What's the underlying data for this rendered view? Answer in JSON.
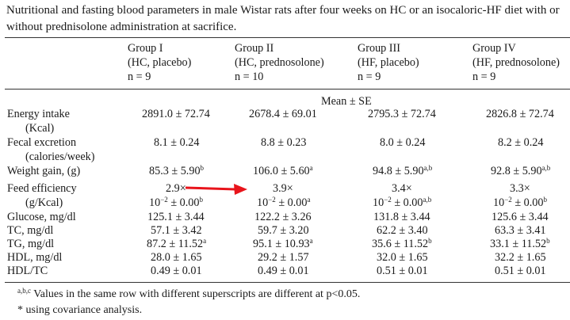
{
  "caption": "Nutritional and fasting blood parameters in male Wistar rats after four weeks on HC or an isocaloric-HF diet with or without prednisolone administration at sacrifice.",
  "groups": [
    {
      "name": "Group I",
      "diet": "(HC, placebo)",
      "n": "n = 9"
    },
    {
      "name": "Group II",
      "diet": "(HC, prednosolone)",
      "n": "n = 10"
    },
    {
      "name": "Group III",
      "diet": "(HF, placebo)",
      "n": "n = 9"
    },
    {
      "name": "Group IV",
      "diet": "(HF, prednosolone)",
      "n": "n = 9"
    }
  ],
  "stat_label": "Mean ± SE",
  "rows": [
    {
      "label": "Energy intake",
      "label2": "(Kcal)",
      "values": [
        "2891.0 ± 72.74",
        "2678.4 ± 69.01",
        "2795.3 ± 72.74",
        "2826.8 ± 72.74"
      ]
    },
    {
      "label": "Fecal excretion",
      "label2": "(calories/week)",
      "values": [
        "8.1 ± 0.24",
        "8.8 ± 0.23",
        "8.0 ± 0.24",
        "8.2 ± 0.24"
      ]
    },
    {
      "label": "Weight gain, (g)",
      "values": [
        "85.3 ± 5.90",
        "106.0 ± 5.60",
        "94.8 ± 5.90",
        "92.8 ± 5.90"
      ],
      "sups": [
        "b",
        "a",
        "a,b",
        "a,b"
      ]
    },
    {
      "label": "Feed efficiency",
      "label2": "(g/Kcal)",
      "values": [
        "2.9×",
        "3.9×",
        "3.4×",
        "3.3×"
      ],
      "values2": [
        "10",
        "10",
        "10",
        "10"
      ],
      "exp": "−2",
      "rest": " ± 0.00",
      "sups2": [
        "b",
        "a",
        "a,b",
        "b"
      ]
    },
    {
      "label": "Glucose, mg/dl",
      "values": [
        "125.1 ± 3.44",
        "122.2 ± 3.26",
        "131.8 ± 3.44",
        "125.6 ± 3.44"
      ]
    },
    {
      "label": "TC, mg/dl",
      "values": [
        "57.1 ± 3.42",
        "59.7 ± 3.20",
        "62.2 ± 3.40",
        "63.3 ± 3.41"
      ]
    },
    {
      "label": "TG, mg/dl",
      "values": [
        "87.2 ± 11.52",
        "95.1 ± 10.93",
        "35.6 ± 11.52",
        "33.1 ± 11.52"
      ],
      "sups": [
        "a",
        "a",
        "b",
        "b"
      ]
    },
    {
      "label": "HDL, mg/dl",
      "values": [
        "28.0 ± 1.65",
        "29.2 ± 1.57",
        "32.0 ± 1.65",
        "32.2 ± 1.65"
      ]
    },
    {
      "label": "HDL/TC",
      "values": [
        "0.49 ± 0.01",
        "0.49 ± 0.01",
        "0.51 ± 0.01",
        "0.51 ± 0.01"
      ]
    }
  ],
  "footnotes": {
    "sup": "a,b,c",
    "note1": " Values in the same row with different superscripts are different at p<0.05.",
    "note2": "* using covariance analysis."
  },
  "arrow_color": "#e8141b"
}
